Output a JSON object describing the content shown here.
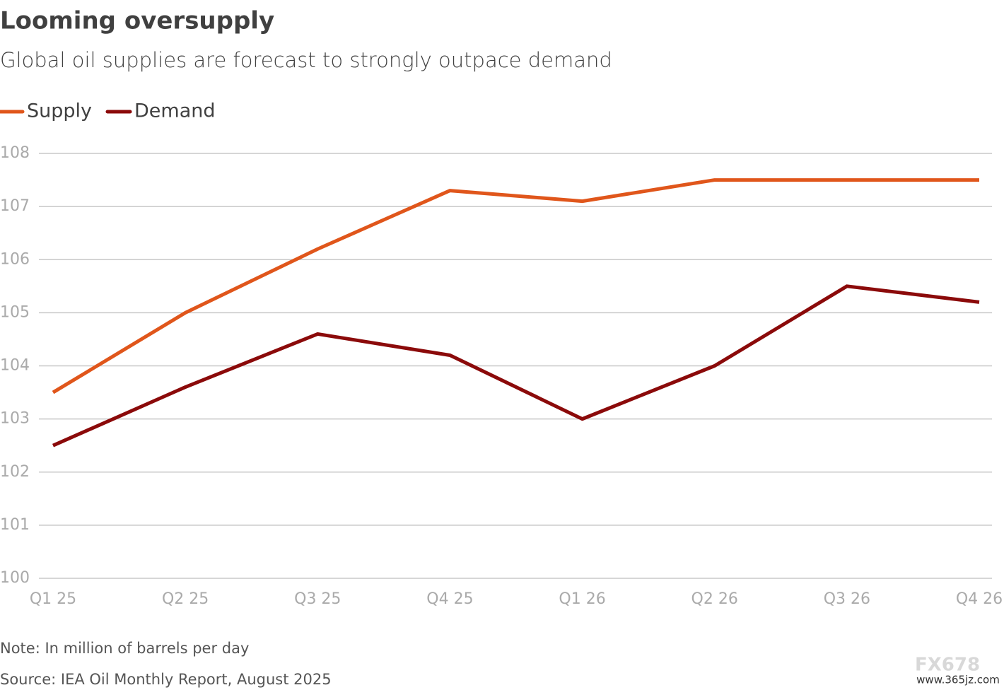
{
  "chart_data": {
    "type": "line",
    "title": "Looming oversupply",
    "subtitle": "Global oil supplies are forecast to strongly outpace demand",
    "categories": [
      "Q1 25",
      "Q2 25",
      "Q3 25",
      "Q4 25",
      "Q1 26",
      "Q2 26",
      "Q3 26",
      "Q4 26"
    ],
    "series": [
      {
        "name": "Supply",
        "color": "#e0561b",
        "values": [
          103.5,
          105.0,
          106.2,
          107.3,
          107.1,
          107.5,
          107.5,
          107.5
        ]
      },
      {
        "name": "Demand",
        "color": "#8b0a0a",
        "values": [
          102.5,
          103.6,
          104.6,
          104.2,
          103.0,
          104.0,
          105.5,
          105.2
        ]
      }
    ],
    "ylim": [
      100,
      108
    ],
    "yticks": [
      100,
      101,
      102,
      103,
      104,
      105,
      106,
      107,
      108
    ],
    "grid": true,
    "legend": "top-left",
    "notes": [
      "Note: In million of barrels per day",
      "Source: IEA Oil Monthly Report, August 2025"
    ]
  },
  "watermark": {
    "logo": "FX678",
    "url": "www.365jz.com"
  }
}
